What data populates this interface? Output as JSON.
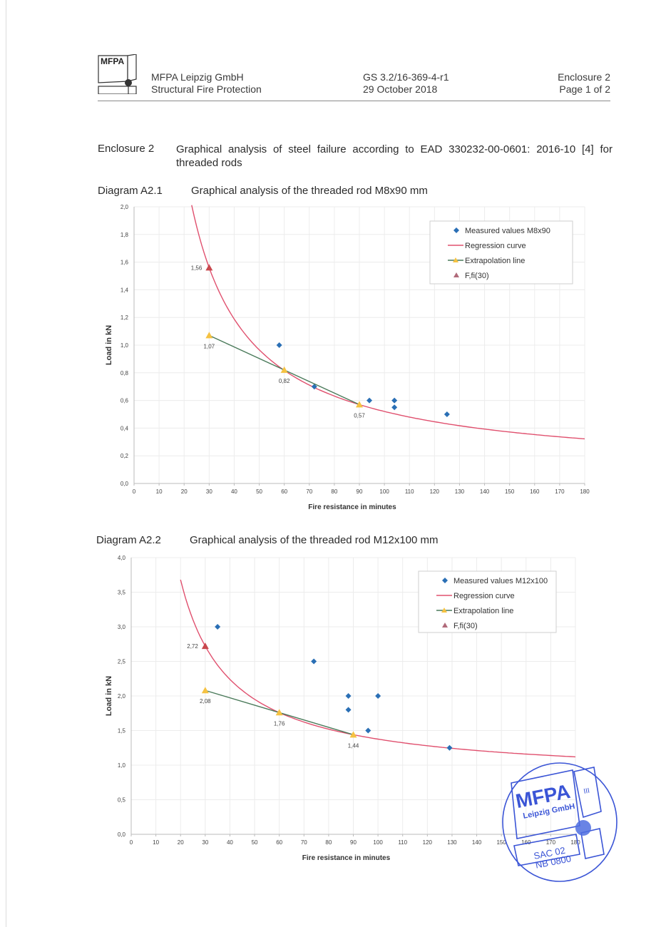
{
  "header": {
    "logo_text": "MFPA",
    "company": "MFPA Leipzig GmbH",
    "department": "Structural Fire Protection",
    "doc_number": "GS 3.2/16-369-4-r1",
    "date": "29 October 2018",
    "enclosure": "Enclosure 2",
    "page": "Page 1 of 2"
  },
  "enclosure": {
    "label": "Enclosure 2",
    "title": "Graphical analysis of steel failure according to EAD 330232-00-0601: 2016-10 [4] for threaded rods"
  },
  "diagrams": [
    {
      "label": "Diagram A2.1",
      "title": "Graphical analysis of the threaded rod M8x90 mm"
    },
    {
      "label": "Diagram A2.2",
      "title": "Graphical analysis of the threaded rod M12x100 mm"
    }
  ],
  "colors": {
    "measured": "#2a6fb5",
    "regression": "#e0506e",
    "extrapolation_line": "#4a7a5a",
    "extrapolation_marker": "#f5c242",
    "ffi30": "#c8484e",
    "grid": "#ececec",
    "stamp": "#3b55d6"
  },
  "stamp": {
    "logo": "MFPA",
    "name": "Leipzig GmbH",
    "roman": "III",
    "line1": "SAC 02",
    "line2": "NB   0800"
  },
  "chart_data": [
    {
      "type": "scatter",
      "title": "Graphical analysis of the threaded rod M8x90 mm",
      "xlabel": "Fire resistance in minutes",
      "ylabel": "Load in kN",
      "xlim": [
        0,
        180
      ],
      "ylim": [
        0,
        2.0
      ],
      "xticks": [
        "0",
        "10",
        "20",
        "30",
        "40",
        "50",
        "60",
        "70",
        "80",
        "90",
        "100",
        "110",
        "120",
        "130",
        "140",
        "150",
        "160",
        "170",
        "180"
      ],
      "yticks": [
        "0,0",
        "0,2",
        "0,4",
        "0,6",
        "0,8",
        "1,0",
        "1,2",
        "1,4",
        "1,6",
        "1,8",
        "2,0"
      ],
      "grid": true,
      "legend_position": "upper right",
      "legend": [
        "Measured values M8x90",
        "Regression curve",
        "Extrapolation line",
        "F,fi(30)"
      ],
      "series": [
        {
          "name": "Measured values M8x90",
          "kind": "scatter-diamond",
          "points": [
            [
              58,
              1.0
            ],
            [
              72,
              0.7
            ],
            [
              94,
              0.6
            ],
            [
              104,
              0.6
            ],
            [
              104,
              0.55
            ],
            [
              125,
              0.5
            ]
          ]
        },
        {
          "name": "Regression curve",
          "kind": "curve",
          "model": "y = 0.075 + 44.55/x",
          "x_range": [
            23,
            180
          ]
        },
        {
          "name": "Extrapolation line",
          "kind": "line-triangle",
          "points": [
            [
              30,
              1.07
            ],
            [
              60,
              0.82
            ],
            [
              90,
              0.57
            ]
          ],
          "labels": [
            "1,07",
            "0,82",
            "0,57"
          ]
        },
        {
          "name": "F,fi(30)",
          "kind": "triangle",
          "points": [
            [
              30,
              1.56
            ]
          ],
          "labels": [
            "1,56"
          ]
        }
      ]
    },
    {
      "type": "scatter",
      "title": "Graphical analysis of the threaded rod M12x100 mm",
      "xlabel": "Fire resistance in minutes",
      "ylabel": "Load in kN",
      "xlim": [
        0,
        180
      ],
      "ylim": [
        0,
        4.0
      ],
      "xticks": [
        "0",
        "10",
        "20",
        "30",
        "40",
        "50",
        "60",
        "70",
        "80",
        "90",
        "100",
        "110",
        "120",
        "130",
        "140",
        "150",
        "160",
        "170",
        "180"
      ],
      "yticks": [
        "0,0",
        "0,5",
        "1,0",
        "1,5",
        "2,0",
        "2,5",
        "3,0",
        "3,5",
        "4,0"
      ],
      "grid": true,
      "legend_position": "upper right",
      "legend": [
        "Measured values M12x100",
        "Regression curve",
        "Extrapolation line",
        "F,fi(30)"
      ],
      "series": [
        {
          "name": "Measured values M12x100",
          "kind": "scatter-diamond",
          "points": [
            [
              35,
              3.0
            ],
            [
              74,
              2.5
            ],
            [
              88,
              2.0
            ],
            [
              100,
              2.0
            ],
            [
              88,
              1.8
            ],
            [
              96,
              1.5
            ],
            [
              129,
              1.25
            ]
          ]
        },
        {
          "name": "Regression curve",
          "kind": "curve",
          "model": "y = 0.80 + 57.6/x",
          "x_range": [
            20,
            180
          ]
        },
        {
          "name": "Extrapolation line",
          "kind": "line-triangle",
          "points": [
            [
              30,
              2.08
            ],
            [
              60,
              1.76
            ],
            [
              90,
              1.44
            ]
          ],
          "labels": [
            "2,08",
            "1,76",
            "1,44"
          ]
        },
        {
          "name": "F,fi(30)",
          "kind": "triangle",
          "points": [
            [
              30,
              2.72
            ]
          ],
          "labels": [
            "2,72"
          ]
        }
      ]
    }
  ]
}
